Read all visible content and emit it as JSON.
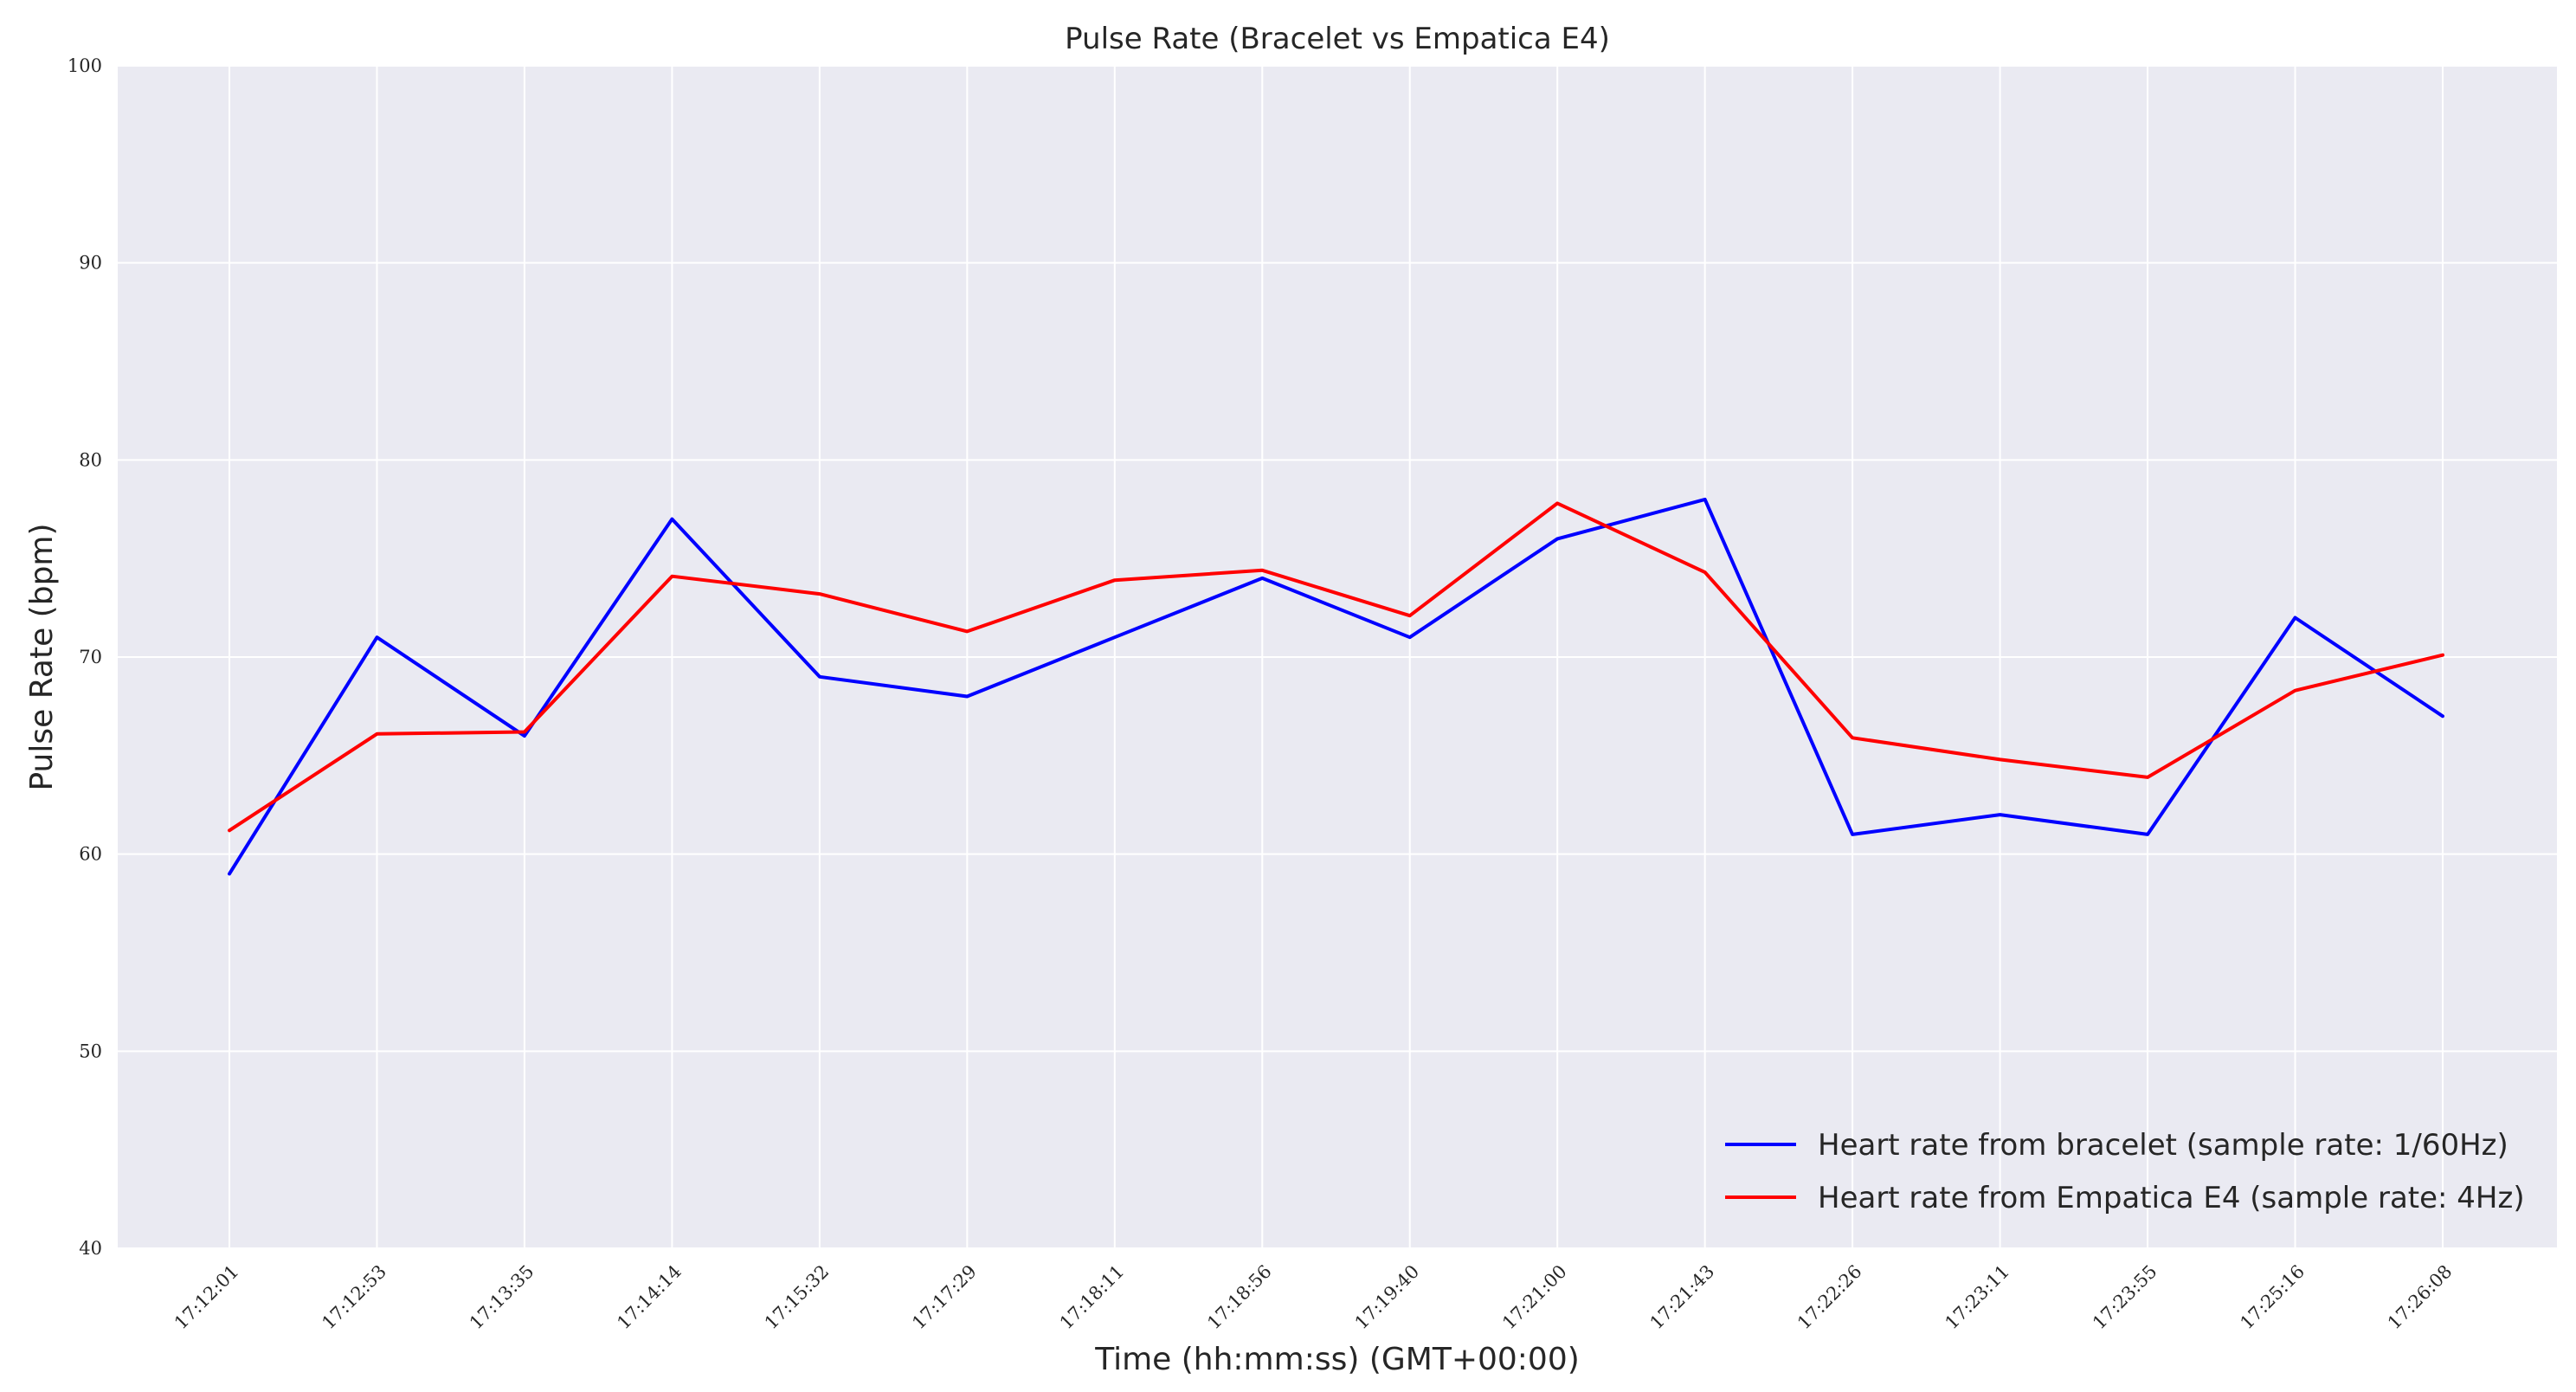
{
  "chart_data": {
    "type": "line",
    "title": "Pulse Rate (Bracelet vs Empatica E4)",
    "xlabel": "Time (hh:mm:ss) (GMT+00:00)",
    "ylabel": "Pulse Rate (bpm)",
    "ylim": [
      40,
      100
    ],
    "yticks": [
      "40",
      "50",
      "60",
      "70",
      "80",
      "90",
      "100"
    ],
    "categories": [
      "17:12:01",
      "17:12:53",
      "17:13:35",
      "17:14:14",
      "17:15:32",
      "17:17:29",
      "17:18:11",
      "17:18:56",
      "17:19:40",
      "17:21:00",
      "17:21:43",
      "17:22:26",
      "17:23:11",
      "17:23:55",
      "17:25:16",
      "17:26:08"
    ],
    "grid": true,
    "legend_position": "bottom-right",
    "background_color": "#eaeaf2",
    "grid_color": "#ffffff",
    "series": [
      {
        "name": "Heart rate from bracelet (sample rate: 1/60Hz)",
        "color": "#0000ff",
        "values": [
          59,
          71,
          66,
          77,
          69,
          68,
          71,
          74,
          71,
          76,
          78,
          61,
          62,
          61,
          72,
          67
        ]
      },
      {
        "name": "Heart rate from Empatica E4 (sample rate: 4Hz)",
        "color": "#ff0000",
        "values": [
          61.2,
          66.1,
          66.2,
          74.1,
          73.2,
          71.3,
          73.9,
          74.4,
          72.1,
          77.8,
          74.3,
          65.9,
          64.8,
          63.9,
          68.3,
          70.1
        ]
      }
    ]
  }
}
